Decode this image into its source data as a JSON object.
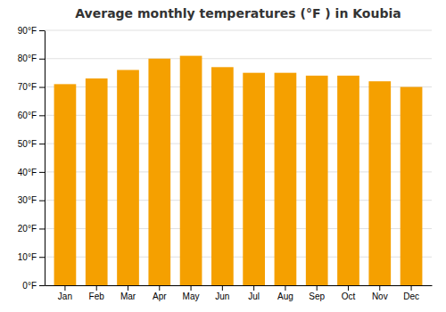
{
  "chart_data": {
    "type": "bar",
    "title": "Average monthly temperatures (°F ) in Koubia",
    "categories": [
      "Jan",
      "Feb",
      "Mar",
      "Apr",
      "May",
      "Jun",
      "Jul",
      "Aug",
      "Sep",
      "Oct",
      "Nov",
      "Dec"
    ],
    "values": [
      71,
      73,
      76,
      80,
      81,
      77,
      75,
      75,
      74,
      74,
      72,
      70
    ],
    "color": "#F5A000",
    "ylim": [
      0,
      90
    ],
    "yticks": [
      {
        "value": 0,
        "label": "0°F"
      },
      {
        "value": 10,
        "label": "10°F"
      },
      {
        "value": 20,
        "label": "20°F"
      },
      {
        "value": 30,
        "label": "30°F"
      },
      {
        "value": 40,
        "label": "40°F"
      },
      {
        "value": 50,
        "label": "50°F"
      },
      {
        "value": 60,
        "label": "60°F"
      },
      {
        "value": 70,
        "label": "70°F"
      },
      {
        "value": 80,
        "label": "80°F"
      },
      {
        "value": 90,
        "label": "90°F"
      }
    ],
    "grid": true
  }
}
